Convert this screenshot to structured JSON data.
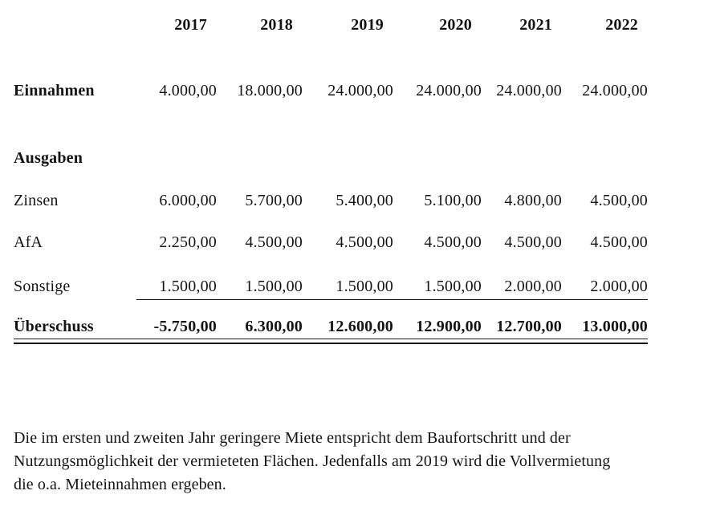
{
  "table": {
    "years": [
      "2017",
      "2018",
      "2019",
      "2020",
      "2021",
      "2022"
    ],
    "rows": [
      {
        "label": "Einnahmen",
        "values": [
          "4.000,00",
          "18.000,00",
          "24.000,00",
          "24.000,00",
          "24.000,00",
          "24.000,00"
        ]
      },
      {
        "label": "Ausgaben",
        "values": []
      },
      {
        "label": "Zinsen",
        "values": [
          "6.000,00",
          "5.700,00",
          "5.400,00",
          "5.100,00",
          "4.800,00",
          "4.500,00"
        ]
      },
      {
        "label": "AfA",
        "values": [
          "2.250,00",
          "4.500,00",
          "4.500,00",
          "4.500,00",
          "4.500,00",
          "4.500,00"
        ]
      },
      {
        "label": "Sonstige",
        "values": [
          "1.500,00",
          "1.500,00",
          "1.500,00",
          "1.500,00",
          "2.000,00",
          "2.000,00"
        ]
      },
      {
        "label": "Überschuss",
        "values": [
          "-5.750,00",
          "6.300,00",
          "12.600,00",
          "12.900,00",
          "12.700,00",
          "13.000,00"
        ]
      }
    ]
  },
  "note": {
    "lines": [
      "Die im ersten und zweiten Jahr geringere Miete entspricht dem Baufortschritt und der",
      "Nutzungsmöglichkeit der vermieteten Flächen. Jedenfalls am 2019 wird die Vollvermietung",
      "die o.a. Mieteinnahmen ergeben."
    ],
    "text_colors": {
      "ink": "#141414",
      "rule": "#111111",
      "background": "#ffffff"
    }
  }
}
